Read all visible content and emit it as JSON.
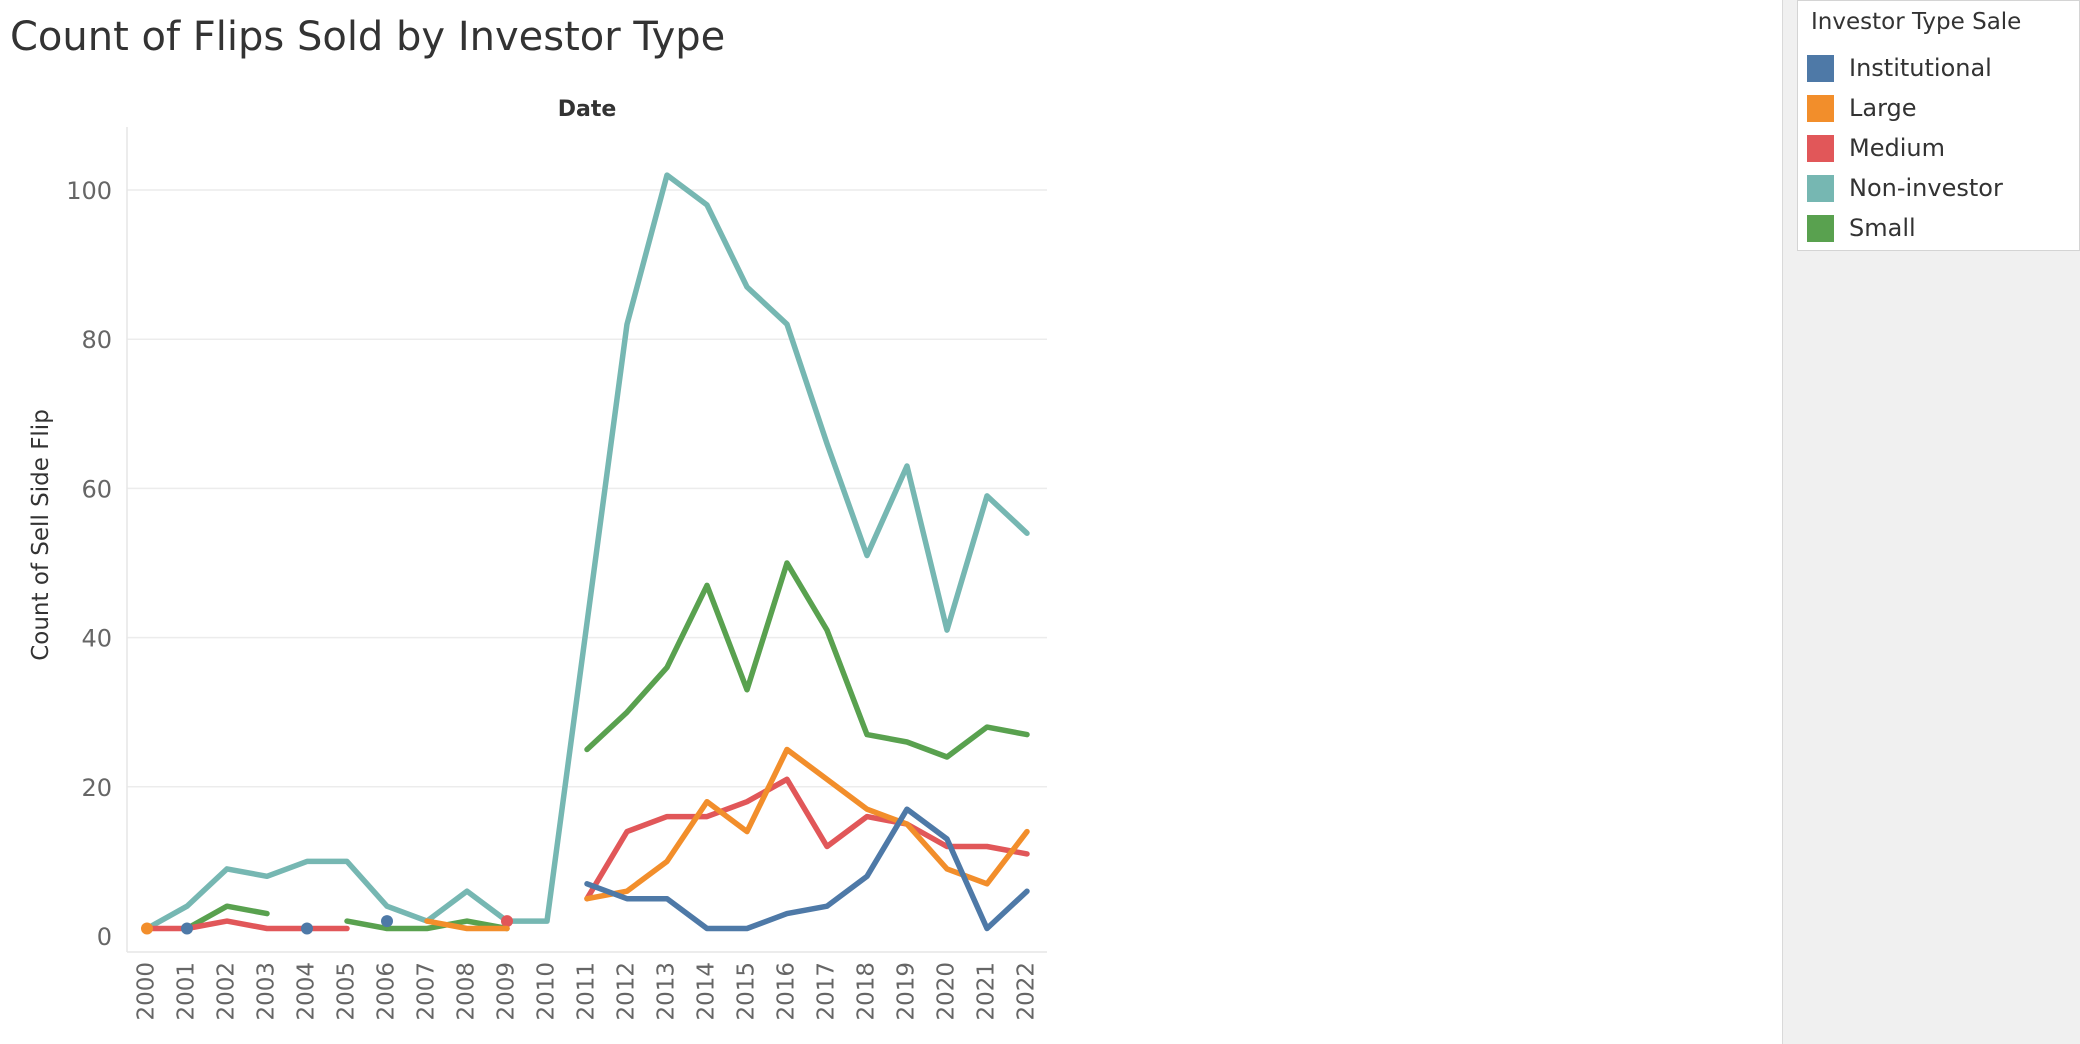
{
  "title": "Count of Flips Sold by Investor Type",
  "legend": {
    "title": "Investor Type Sale",
    "items": [
      {
        "label": "Institutional",
        "color": "#4e79a7"
      },
      {
        "label": "Large",
        "color": "#f28e2b"
      },
      {
        "label": "Medium",
        "color": "#e15759"
      },
      {
        "label": "Non-investor",
        "color": "#76b7b2"
      },
      {
        "label": "Small",
        "color": "#59a14f"
      }
    ]
  },
  "chart_data": {
    "type": "line",
    "title": "Count of Flips Sold by Investor Type",
    "xlabel": "Date",
    "ylabel": "Count of Sell Side Flip",
    "x": [
      "2000",
      "2001",
      "2002",
      "2003",
      "2004",
      "2005",
      "2006",
      "2007",
      "2008",
      "2009",
      "2010",
      "2011",
      "2012",
      "2013",
      "2014",
      "2015",
      "2016",
      "2017",
      "2018",
      "2019",
      "2020",
      "2021",
      "2022"
    ],
    "ylim": [
      -2,
      108
    ],
    "yticks": [
      0,
      20,
      40,
      60,
      80,
      100
    ],
    "grid": true,
    "legend_position": "right",
    "series": [
      {
        "name": "Institutional",
        "color": "#4e79a7",
        "values": [
          null,
          1,
          null,
          null,
          1,
          null,
          2,
          null,
          null,
          null,
          null,
          7,
          5,
          5,
          1,
          1,
          3,
          4,
          8,
          17,
          13,
          1,
          6
        ]
      },
      {
        "name": "Large",
        "color": "#f28e2b",
        "values": [
          1,
          null,
          null,
          null,
          null,
          null,
          null,
          2,
          1,
          1,
          null,
          5,
          6,
          10,
          18,
          14,
          25,
          21,
          17,
          15,
          9,
          7,
          14
        ]
      },
      {
        "name": "Medium",
        "color": "#e15759",
        "values": [
          1,
          1,
          2,
          1,
          1,
          1,
          null,
          null,
          null,
          2,
          null,
          5,
          14,
          16,
          16,
          18,
          21,
          12,
          16,
          15,
          12,
          12,
          11
        ]
      },
      {
        "name": "Non-investor",
        "color": "#76b7b2",
        "values": [
          1,
          4,
          9,
          8,
          10,
          10,
          4,
          2,
          6,
          2,
          2,
          42,
          82,
          102,
          98,
          87,
          82,
          66,
          51,
          63,
          41,
          59,
          54
        ]
      },
      {
        "name": "Small",
        "color": "#59a14f",
        "values": [
          null,
          1,
          4,
          3,
          null,
          2,
          1,
          1,
          2,
          1,
          null,
          25,
          30,
          36,
          47,
          33,
          50,
          41,
          27,
          26,
          24,
          28,
          27
        ]
      }
    ]
  }
}
